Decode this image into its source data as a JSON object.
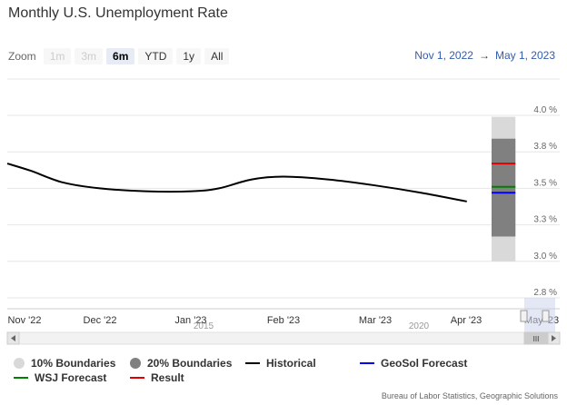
{
  "title": "Monthly U.S. Unemployment Rate",
  "zoom": {
    "label": "Zoom",
    "buttons": [
      {
        "label": "1m",
        "state": "disabled"
      },
      {
        "label": "3m",
        "state": "disabled"
      },
      {
        "label": "6m",
        "state": "active"
      },
      {
        "label": "YTD",
        "state": "normal"
      },
      {
        "label": "1y",
        "state": "normal"
      },
      {
        "label": "All",
        "state": "normal"
      }
    ]
  },
  "range": {
    "from": "Nov 1, 2022",
    "arrow": "→",
    "to": "May 1, 2023"
  },
  "legend": [
    {
      "label": "10% Boundaries",
      "kind": "dot",
      "color": "#d9d9d9"
    },
    {
      "label": "20% Boundaries",
      "kind": "dot",
      "color": "#808080"
    },
    {
      "label": "Historical",
      "kind": "line",
      "color": "#000000"
    },
    {
      "label": "GeoSol Forecast",
      "kind": "line",
      "color": "#0000ff"
    },
    {
      "label": "WSJ Forecast",
      "kind": "line",
      "color": "#008000"
    },
    {
      "label": "Result",
      "kind": "line",
      "color": "#e00000"
    }
  ],
  "credits": "Bureau of Labor Statistics, Geographic Solutions",
  "chart_data": {
    "type": "line",
    "title": "Monthly U.S. Unemployment Rate",
    "x_ticks": [
      "Nov '22",
      "Dec '22",
      "Jan '23",
      "Feb '23",
      "Mar '23",
      "Apr '23",
      "May '23"
    ],
    "y_ticks": [
      "4.0 %",
      "3.8 %",
      "3.5 %",
      "3.3 %",
      "3.0 %",
      "2.8 %"
    ],
    "y_tick_values": [
      4.0,
      3.75,
      3.5,
      3.25,
      3.0,
      2.75
    ],
    "ylim": [
      2.75,
      4.0
    ],
    "grid": true,
    "historical": {
      "name": "Historical",
      "points": [
        {
          "x": 0.0,
          "y": 3.67
        },
        {
          "x": 0.25,
          "y": 3.62
        },
        {
          "x": 0.6,
          "y": 3.54
        },
        {
          "x": 1.0,
          "y": 3.5
        },
        {
          "x": 1.5,
          "y": 3.48
        },
        {
          "x": 2.0,
          "y": 3.48
        },
        {
          "x": 2.3,
          "y": 3.5
        },
        {
          "x": 2.65,
          "y": 3.56
        },
        {
          "x": 3.0,
          "y": 3.58
        },
        {
          "x": 3.5,
          "y": 3.56
        },
        {
          "x": 4.0,
          "y": 3.52
        },
        {
          "x": 4.5,
          "y": 3.47
        },
        {
          "x": 5.0,
          "y": 3.41
        }
      ]
    },
    "forecast_start": 5.0,
    "forecast_end": 5.25,
    "band_10": [
      3.0,
      3.99
    ],
    "band_20": [
      3.17,
      3.84
    ],
    "geosol_forecast": 3.47,
    "wsj_forecast": 3.51,
    "result": 3.67,
    "navigator_labels": [
      "2015",
      "2020"
    ]
  }
}
